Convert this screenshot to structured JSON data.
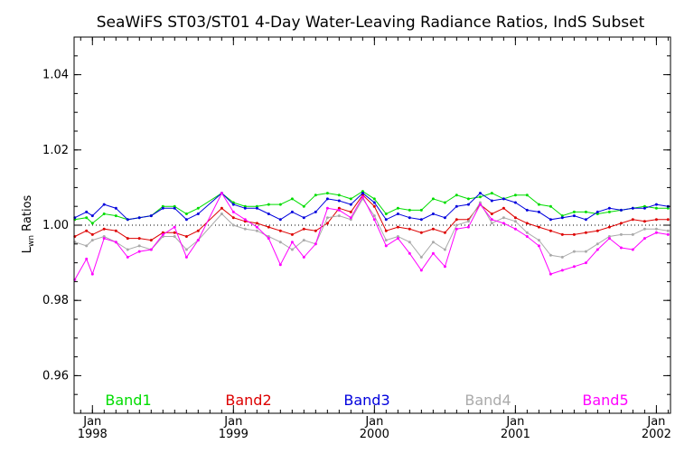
{
  "chart_data": {
    "type": "line",
    "title": "SeaWiFS ST03/ST01 4-Day Water-Leaving Radiance Ratios, IndS Subset",
    "ylabel": "L",
    "ylabel_sub": "wn",
    "ylabel_rest": " Ratios",
    "xlabel": "",
    "xlim": [
      1997.87,
      2002.1
    ],
    "ylim": [
      0.95,
      1.05
    ],
    "yticks": [
      0.96,
      0.98,
      1.0,
      1.02,
      1.04
    ],
    "ytick_labels": [
      "0.96",
      "0.98",
      "1.00",
      "1.02",
      "1.04"
    ],
    "xticks": [
      {
        "x": 1998.0,
        "month": "Jan",
        "year": "1998"
      },
      {
        "x": 1999.0,
        "month": "Jan",
        "year": "1999"
      },
      {
        "x": 2000.0,
        "month": "Jan",
        "year": "2000"
      },
      {
        "x": 2001.0,
        "month": "Jan",
        "year": "2001"
      },
      {
        "x": 2002.0,
        "month": "Jan",
        "year": "2002"
      }
    ],
    "reference_line": 1.0,
    "grid": false,
    "legend_position": "bottom",
    "x": [
      1997.875,
      1997.958,
      1998.0,
      1998.083,
      1998.167,
      1998.25,
      1998.333,
      1998.417,
      1998.5,
      1998.583,
      1998.667,
      1998.75,
      1998.917,
      1999.0,
      1999.083,
      1999.167,
      1999.25,
      1999.333,
      1999.417,
      1999.5,
      1999.583,
      1999.667,
      1999.75,
      1999.833,
      1999.917,
      2000.0,
      2000.083,
      2000.167,
      2000.25,
      2000.333,
      2000.417,
      2000.5,
      2000.583,
      2000.667,
      2000.75,
      2000.833,
      2000.917,
      2001.0,
      2001.083,
      2001.167,
      2001.25,
      2001.333,
      2001.417,
      2001.5,
      2001.583,
      2001.667,
      2001.75,
      2001.833,
      2001.917,
      2002.0,
      2002.083
    ],
    "series": [
      {
        "name": "Band1",
        "color": "#00dd00",
        "values": [
          1.0015,
          1.002,
          1.0005,
          1.003,
          1.0025,
          1.0015,
          1.002,
          1.0025,
          1.005,
          1.005,
          1.003,
          1.0045,
          1.0085,
          1.006,
          1.005,
          1.005,
          1.0055,
          1.0055,
          1.007,
          1.005,
          1.008,
          1.0085,
          1.008,
          1.007,
          1.009,
          1.007,
          1.003,
          1.0045,
          1.004,
          1.004,
          1.007,
          1.006,
          1.008,
          1.007,
          1.0075,
          1.0085,
          1.007,
          1.008,
          1.008,
          1.0055,
          1.005,
          1.0025,
          1.0035,
          1.0035,
          1.003,
          1.0035,
          1.004,
          1.0045,
          1.005,
          1.0045,
          1.0045
        ]
      },
      {
        "name": "Band2",
        "color": "#dd0000",
        "values": [
          0.997,
          0.9985,
          0.9975,
          0.999,
          0.9985,
          0.9965,
          0.9965,
          0.996,
          0.998,
          0.998,
          0.997,
          0.9985,
          1.0045,
          1.002,
          1.001,
          1.0005,
          0.9995,
          0.9985,
          0.9975,
          0.999,
          0.9985,
          1.0005,
          1.0045,
          1.0035,
          1.008,
          1.005,
          0.9985,
          0.9995,
          0.999,
          0.998,
          0.999,
          0.998,
          1.0015,
          1.0015,
          1.0055,
          1.003,
          1.0045,
          1.002,
          1.0005,
          0.9995,
          0.9985,
          0.9975,
          0.9975,
          0.998,
          0.9985,
          0.9995,
          1.0005,
          1.0015,
          1.001,
          1.0015,
          1.0015
        ]
      },
      {
        "name": "Band3",
        "color": "#0000dd",
        "values": [
          1.002,
          1.0035,
          1.0025,
          1.0055,
          1.0045,
          1.0015,
          1.002,
          1.0025,
          1.0045,
          1.0045,
          1.0015,
          1.003,
          1.0085,
          1.0055,
          1.0045,
          1.0045,
          1.003,
          1.0015,
          1.0035,
          1.002,
          1.0035,
          1.007,
          1.0065,
          1.0055,
          1.0085,
          1.006,
          1.0015,
          1.003,
          1.002,
          1.0015,
          1.003,
          1.002,
          1.005,
          1.0055,
          1.0085,
          1.0065,
          1.007,
          1.006,
          1.004,
          1.0035,
          1.0015,
          1.002,
          1.0025,
          1.0015,
          1.0035,
          1.0045,
          1.004,
          1.0045,
          1.0045,
          1.0055,
          1.005
        ]
      },
      {
        "name": "Band4",
        "color": "#aaaaaa",
        "values": [
          0.9955,
          0.9945,
          0.996,
          0.997,
          0.9955,
          0.9935,
          0.9945,
          0.9935,
          0.997,
          0.997,
          0.9935,
          0.996,
          1.003,
          1.0,
          0.999,
          0.9985,
          0.997,
          0.9955,
          0.9935,
          0.996,
          0.995,
          1.002,
          1.0025,
          1.0015,
          1.007,
          1.0025,
          0.996,
          0.997,
          0.9955,
          0.9915,
          0.9955,
          0.9935,
          1.0,
          1.001,
          1.006,
          1.0005,
          1.002,
          1.001,
          0.998,
          0.996,
          0.992,
          0.9915,
          0.993,
          0.993,
          0.995,
          0.997,
          0.9975,
          0.9975,
          0.999,
          0.999,
          0.9985
        ]
      },
      {
        "name": "Band5",
        "color": "#ff00ff",
        "values": [
          0.9855,
          0.991,
          0.987,
          0.9965,
          0.9955,
          0.9915,
          0.993,
          0.9935,
          0.9975,
          0.9995,
          0.9915,
          0.996,
          1.0085,
          1.0035,
          1.0015,
          0.9995,
          0.9965,
          0.9895,
          0.9955,
          0.9915,
          0.995,
          1.0045,
          1.004,
          1.002,
          1.0075,
          1.0015,
          0.9945,
          0.9965,
          0.9925,
          0.988,
          0.9925,
          0.989,
          0.999,
          0.9995,
          1.0055,
          1.0015,
          1.0005,
          0.999,
          0.997,
          0.9945,
          0.987,
          0.988,
          0.989,
          0.99,
          0.9935,
          0.9965,
          0.994,
          0.9935,
          0.9965,
          0.998,
          0.9975
        ]
      }
    ]
  }
}
